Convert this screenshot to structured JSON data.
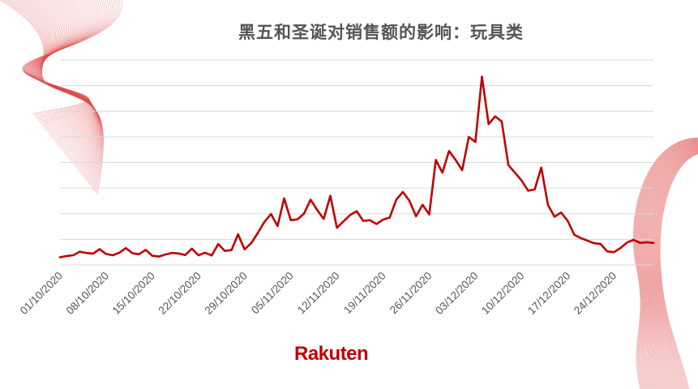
{
  "title": "黑五和圣诞对销售额的影响：玩具类",
  "logo_text": "Rakuten",
  "colors": {
    "line": "#bf0000",
    "grid": "#d9d9d9",
    "deco": "#e04b4b",
    "text": "#555555"
  },
  "chart_data": {
    "type": "line",
    "title": "黑五和圣诞对销售额的影响：玩具类",
    "xlabel": "",
    "ylabel": "",
    "x_tick_labels": [
      "01/10/2020",
      "08/10/2020",
      "15/10/2020",
      "22/10/2020",
      "29/10/2020",
      "05/11/2020",
      "12/11/2020",
      "19/11/2020",
      "26/11/2020",
      "03/12/2020",
      "10/12/2020",
      "17/12/2020",
      "24/12/2020"
    ],
    "ylim": [
      0,
      8
    ],
    "y_ticks_shown": false,
    "grid": "horizontal",
    "series": [
      {
        "name": "",
        "values": [
          0.3,
          0.35,
          0.38,
          0.52,
          0.47,
          0.44,
          0.62,
          0.43,
          0.38,
          0.48,
          0.66,
          0.46,
          0.42,
          0.59,
          0.36,
          0.33,
          0.41,
          0.47,
          0.45,
          0.39,
          0.64,
          0.38,
          0.48,
          0.37,
          0.82,
          0.55,
          0.58,
          1.2,
          0.61,
          0.85,
          1.25,
          1.68,
          1.99,
          1.52,
          2.6,
          1.75,
          1.78,
          2.0,
          2.55,
          2.15,
          1.8,
          2.7,
          1.45,
          1.7,
          1.95,
          2.1,
          1.72,
          1.75,
          1.6,
          1.77,
          1.85,
          2.55,
          2.85,
          2.5,
          1.9,
          2.35,
          1.97,
          4.1,
          3.6,
          4.45,
          4.1,
          3.7,
          5.0,
          4.8,
          7.35,
          5.5,
          5.8,
          5.6,
          3.9,
          3.6,
          3.3,
          2.9,
          2.95,
          3.8,
          2.35,
          1.88,
          2.05,
          1.72,
          1.18,
          1.05,
          0.95,
          0.85,
          0.82,
          0.53,
          0.5,
          0.66,
          0.88,
          0.98,
          0.86,
          0.89,
          0.86
        ]
      }
    ]
  }
}
